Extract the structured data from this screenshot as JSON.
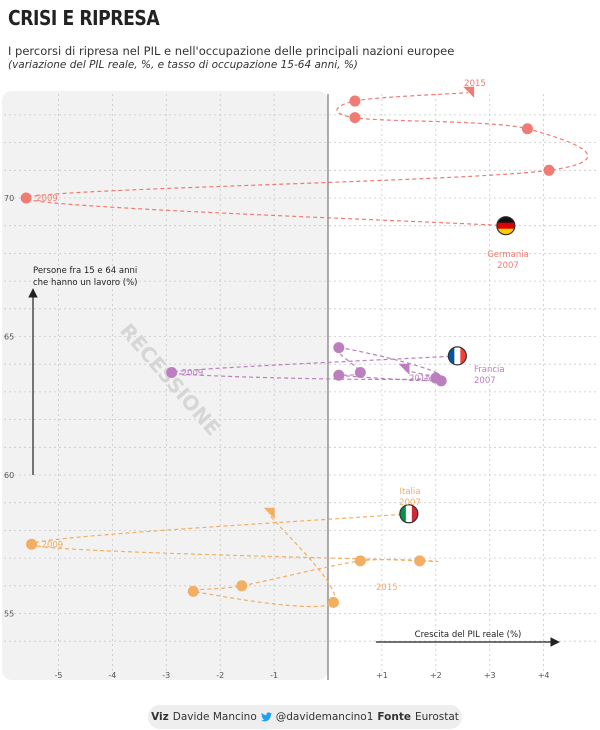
{
  "header": {
    "title": "CRISI E RIPRESA",
    "subtitle": "I percorsi di ripresa nel PIL e nell'occupazione delle principali nazioni europee",
    "subtitle2": "(variazione del PIL reale, %, e tasso di occupazione 15-64 anni, %)"
  },
  "footer": {
    "viz_label": "Viz",
    "author": "Davide Mancino",
    "twitter_icon": "twitter-bird-icon",
    "handle": "@davidemancino1",
    "source_label": "Fonte",
    "source": "Eurostat"
  },
  "chart_data": {
    "type": "scatter",
    "variant": "connected-scatter",
    "xlabel": "Crescita del PIL reale (%)",
    "ylabel": "Persone fra 15 e 64 anni che hanno un lavoro (%)",
    "xlim": [
      -5.8,
      4.5
    ],
    "ylim": [
      53.7,
      73.2
    ],
    "x_ticks": [
      -5,
      -4,
      -3,
      -2,
      -1,
      1,
      2,
      3,
      4
    ],
    "x_tick_labels": [
      "-5",
      "-4",
      "-3",
      "-2",
      "-1",
      "+1",
      "+2",
      "+3",
      "+4"
    ],
    "y_ticks": [
      55,
      60,
      65,
      70
    ],
    "y_tick_labels": [
      "55",
      "60",
      "65",
      "70"
    ],
    "grid": true,
    "recession_band": {
      "label": "RECESSIONE",
      "x_from": -5.8,
      "x_to": 0
    },
    "series": [
      {
        "name": "Germania",
        "color": "#f07b72",
        "flag": "germany-flag-icon",
        "x": [
          3.3,
          -5.6,
          4.1,
          3.7,
          0.5,
          0.5,
          2.6
        ],
        "y": [
          69.0,
          70.0,
          71.0,
          72.5,
          72.9,
          73.5,
          73.8
        ],
        "start_label": "Germania",
        "start_year": "2007",
        "low_label": "2009",
        "end_label": "2015"
      },
      {
        "name": "Francia",
        "color": "#bb7fbf",
        "flag": "france-flag-icon",
        "x": [
          2.4,
          -2.9,
          2.0,
          0.2,
          0.6,
          0.2,
          2.1,
          1.4
        ],
        "y": [
          64.3,
          63.7,
          63.5,
          64.6,
          63.7,
          63.6,
          63.4,
          63.8
        ],
        "start_label": "Francia",
        "start_year": "2007",
        "low_label": "2009",
        "end_label": "2015"
      },
      {
        "name": "Italia",
        "color": "#f2ae62",
        "flag": "italy-flag-icon",
        "x": [
          1.5,
          -5.5,
          1.7,
          0.6,
          -1.6,
          -2.5,
          0.1,
          -1.1
        ],
        "y": [
          58.6,
          57.5,
          56.9,
          56.9,
          56.0,
          55.8,
          55.4,
          58.6
        ],
        "start_label": "Italia",
        "start_year": "2007",
        "low_label": "2009",
        "end_label": "2015"
      }
    ]
  }
}
